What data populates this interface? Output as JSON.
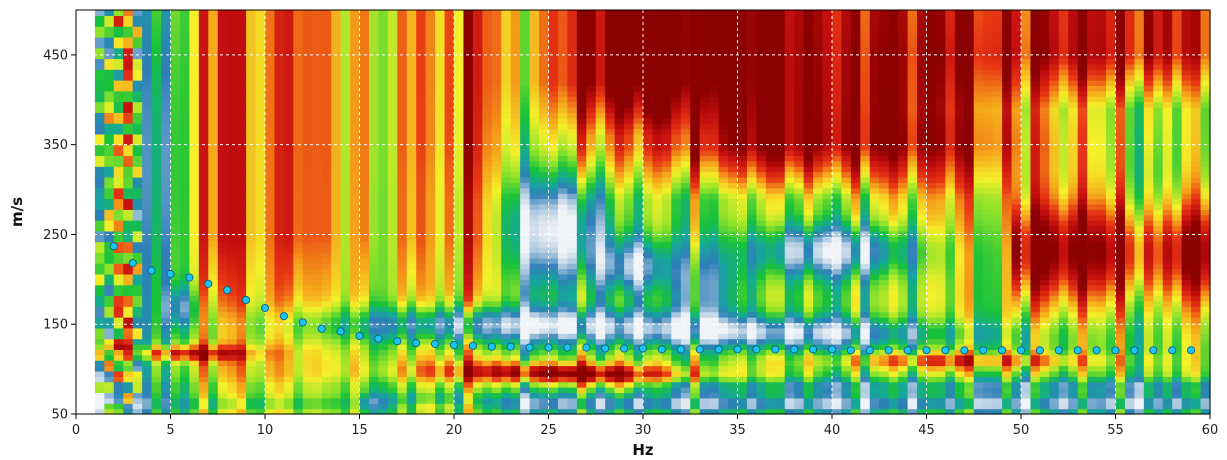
{
  "chart_data": {
    "type": "heatmap",
    "title": "",
    "xlabel": "Hz",
    "ylabel": "m/s",
    "xlim": [
      0,
      60
    ],
    "ylim": [
      50,
      500
    ],
    "x_ticks": [
      0,
      5,
      10,
      15,
      20,
      25,
      30,
      35,
      40,
      45,
      50,
      55,
      60
    ],
    "y_ticks": [
      50,
      150,
      250,
      350,
      450
    ],
    "grid": true,
    "colormap": [
      "#f0f4f8",
      "#a9c6de",
      "#2e7fb8",
      "#16a89a",
      "#18c23a",
      "#8fe22a",
      "#f5f02a",
      "#f5a21a",
      "#e83814",
      "#c40e0e",
      "#8b0000"
    ],
    "marker_color": "#19c6f2",
    "picks": {
      "x": [
        2,
        3,
        4,
        5,
        6,
        7,
        8,
        9,
        10,
        11,
        12,
        13,
        14,
        15,
        16,
        17,
        18,
        19,
        20,
        21,
        22,
        23,
        24,
        25,
        26,
        27,
        28,
        29,
        30,
        31,
        32,
        33,
        34,
        35,
        36,
        37,
        38,
        39,
        40,
        41,
        42,
        43,
        44,
        45,
        46,
        47,
        48,
        49,
        50,
        51,
        52,
        53,
        54,
        55,
        56,
        57,
        58,
        59
      ],
      "y": [
        237,
        218,
        210,
        206,
        202,
        195,
        188,
        177,
        168,
        159,
        152,
        145,
        142,
        137,
        134,
        131,
        129,
        128,
        127,
        126,
        125,
        125,
        124,
        124,
        124,
        124,
        123,
        123,
        123,
        122,
        122,
        122,
        122,
        122,
        122,
        122,
        122,
        122,
        122,
        121,
        121,
        121,
        121,
        121,
        121,
        121,
        121,
        121,
        121,
        121,
        121,
        121,
        121,
        121,
        121,
        121,
        121,
        121
      ]
    }
  }
}
